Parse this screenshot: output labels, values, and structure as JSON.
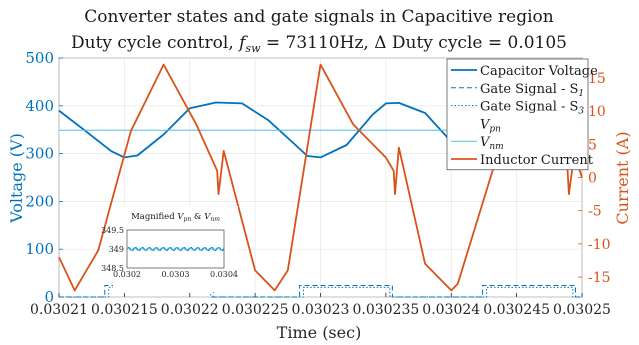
{
  "chart_data": {
    "type": "line",
    "title": "Converter states and gate signals in Capacitive region",
    "subtitle": "Duty cycle control, f_sw = 73110Hz, Δ Duty cycle = 0.0105",
    "subtitle_parts": [
      "Duty cycle control, ",
      "f",
      "sw",
      " = 73110Hz, Δ Duty cycle = 0.0105"
    ],
    "xlabel": "Time (sec)",
    "ylabel_left": "Voltage (V)",
    "ylabel_right": "Current (A)",
    "xlim": [
      0.03021,
      0.03025
    ],
    "ylim_left": [
      0,
      500
    ],
    "ylim_right": [
      -18,
      18
    ],
    "x_ticks": [
      "0.03021",
      "0.030215",
      "0.03022",
      "0.030225",
      "0.03023",
      "0.030235",
      "0.03024",
      "0.030245",
      "0.03025"
    ],
    "y_ticks_left": [
      "0",
      "100",
      "200",
      "300",
      "400",
      "500"
    ],
    "y_ticks_right": [
      "-15",
      "-10",
      "-5",
      "0",
      "5",
      "10",
      "15"
    ],
    "grid": true,
    "legend_position": "top-right",
    "legend": [
      {
        "label": "Capacitor Voltage",
        "style": "solid",
        "color": "#0072BD"
      },
      {
        "label": "Gate Signal - S",
        "sub": "1",
        "style": "dashed",
        "color": "#0072BD"
      },
      {
        "label": "Gate Signal - S",
        "sub": "3",
        "style": "dotted",
        "color": "#0072BD"
      },
      {
        "label": "V",
        "sub": "pn",
        "style": "none",
        "color": "#0072BD"
      },
      {
        "label": "V",
        "sub": "nm",
        "style": "solid-thin",
        "color": "#4DBEEE"
      },
      {
        "label": "Inductor Current",
        "style": "solid",
        "color": "#D95319"
      }
    ],
    "series": [
      {
        "name": "Capacitor Voltage",
        "axis": "left",
        "color": "#0072BD",
        "x": [
          0.03021,
          0.030212,
          0.030214,
          0.030215,
          0.030216,
          0.030218,
          0.03022,
          0.030222,
          0.030224,
          0.030226,
          0.030228,
          0.030229,
          0.03023,
          0.030232,
          0.030234,
          0.030235,
          0.030236,
          0.030238,
          0.03024,
          0.030242,
          0.030244,
          0.030246,
          0.030248,
          0.03025
        ],
        "y": [
          390,
          348,
          305,
          292,
          296,
          340,
          395,
          407,
          405,
          370,
          320,
          295,
          292,
          318,
          382,
          405,
          406,
          385,
          325,
          292,
          300,
          340,
          388,
          405
        ]
      },
      {
        "name": "Gate Signal - S1",
        "axis": "left",
        "color": "#0072BD",
        "style": "dashed",
        "x": [
          0.03021,
          0.0302135,
          0.0302135,
          0.0302218,
          0.0302218,
          0.0302284,
          0.0302284,
          0.0302355,
          0.0302355,
          0.0302424,
          0.0302424,
          0.0302495,
          0.0302495,
          0.03025
        ],
        "y": [
          0,
          0,
          24,
          24,
          0,
          0,
          24,
          24,
          0,
          0,
          24,
          24,
          0,
          0
        ]
      },
      {
        "name": "Gate Signal - S3",
        "axis": "left",
        "color": "#0072BD",
        "style": "dotted",
        "x": [
          0.03021,
          0.0302138,
          0.0302138,
          0.0302216,
          0.0302216,
          0.0302287,
          0.0302287,
          0.0302353,
          0.0302353,
          0.0302427,
          0.0302427,
          0.0302493,
          0.0302493,
          0.03025
        ],
        "y": [
          0,
          0,
          20,
          20,
          0,
          0,
          20,
          20,
          0,
          0,
          20,
          20,
          0,
          0
        ]
      },
      {
        "name": "Vnm",
        "axis": "left",
        "color": "#4DBEEE",
        "x": [
          0.03021,
          0.03025
        ],
        "y": [
          349,
          349
        ]
      },
      {
        "name": "Inductor Current",
        "axis": "right",
        "color": "#D95319",
        "x": [
          0.03021,
          0.0302112,
          0.030213,
          0.0302155,
          0.030218,
          0.0302205,
          0.0302221,
          0.0302222,
          0.0302226,
          0.030225,
          0.0302265,
          0.0302275,
          0.03023,
          0.0302325,
          0.030235,
          0.0302356,
          0.0302357,
          0.030236,
          0.030238,
          0.03024,
          0.0302405,
          0.030243,
          0.0302455,
          0.0302475,
          0.0302489,
          0.030249,
          0.0302494,
          0.03025
        ],
        "y": [
          -12,
          -17,
          -11,
          7,
          17,
          8,
          1,
          -2.5,
          4,
          -14,
          -17,
          -14,
          17,
          8,
          3,
          1,
          -2.5,
          4.5,
          -13,
          -17,
          -16,
          0,
          16,
          14,
          1,
          -2.5,
          3.5,
          0
        ]
      }
    ],
    "inset": {
      "title_parts": [
        "Magnified ",
        "V",
        "pn",
        " & ",
        "V",
        "nm"
      ],
      "xlim": [
        0.0302,
        0.0304
      ],
      "ylim": [
        348.5,
        349.5
      ],
      "x_ticks": [
        "0.0302",
        "0.0303",
        "0.0304"
      ],
      "y_ticks": [
        "349.5",
        "349",
        "348.5"
      ],
      "series": [
        {
          "name": "Vpn",
          "color": "#0072BD",
          "amplitude": 0.04,
          "cycles": 14,
          "center": 349
        },
        {
          "name": "Vnm",
          "color": "#4DBEEE",
          "amplitude": 0.03,
          "cycles": 14,
          "center": 349
        }
      ]
    }
  }
}
